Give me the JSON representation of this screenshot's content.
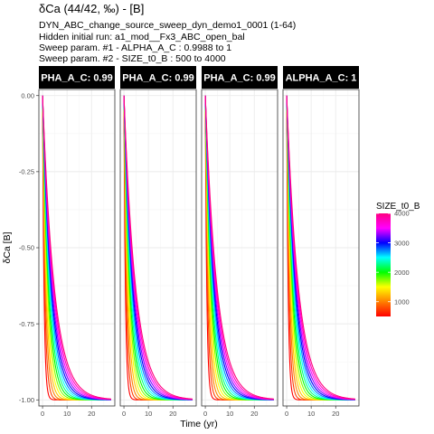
{
  "header": {
    "title": "δCa (44/42, ‰) - [B]",
    "subtitle_lines": [
      "DYN_ABC_change_source_sweep_dyn_demo1_0001 (1-64)",
      "Hidden initial run: a1_mod__Fx3_ABC_open_bal",
      "Sweep param. #1 -  ALPHA_A_C :  0.9988 to 1",
      "Sweep param. #2 -  SIZE_t0_B :  500 to 4000"
    ]
  },
  "chart_data": {
    "type": "line",
    "panels": [
      {
        "strip_label": "PHA_A_C: 0.99"
      },
      {
        "strip_label": "PHA_A_C: 0.99"
      },
      {
        "strip_label": "PHA_A_C: 0.99"
      },
      {
        "strip_label": "ALPHA_A_C: 1"
      }
    ],
    "xlabel": "Time (yr)",
    "ylabel": "δCa [B]",
    "xlim": [
      -1.5,
      29.5
    ],
    "ylim": [
      -1.02,
      0.02
    ],
    "x_ticks": [
      0,
      10,
      20
    ],
    "y_ticks": [
      0,
      -0.25,
      -0.5,
      -0.75,
      -1.0
    ],
    "y_tick_labels": [
      "0.00",
      "-0.25",
      "-0.50",
      "-0.75",
      "-1.00"
    ],
    "curve_model": "y = -(1 - exp(-t / (k * SIZE_t0_B)))",
    "curve_time_range": [
      0,
      28
    ],
    "size_values": [
      500,
      750,
      1000,
      1250,
      1500,
      1750,
      2000,
      2250,
      2500,
      2750,
      3000,
      3250,
      3500,
      3750,
      4000
    ],
    "tau_per_size": 0.0012,
    "grid": true,
    "legend": {
      "title": "SIZE_t0_B",
      "position": "right",
      "range": [
        500,
        4000
      ],
      "ticks": [
        1000,
        2000,
        3000,
        4000
      ],
      "colors": [
        "#ff0000",
        "#ff8000",
        "#ffff00",
        "#00ff00",
        "#00ffff",
        "#0000ff",
        "#ff00ff",
        "#ff0080"
      ]
    },
    "colors": {
      "panel_bg": "#ffffff",
      "panel_border": "#333333",
      "strip_bg": "#000000",
      "grid_major": "#ebebeb",
      "grid_minor": "#f5f5f5"
    }
  }
}
